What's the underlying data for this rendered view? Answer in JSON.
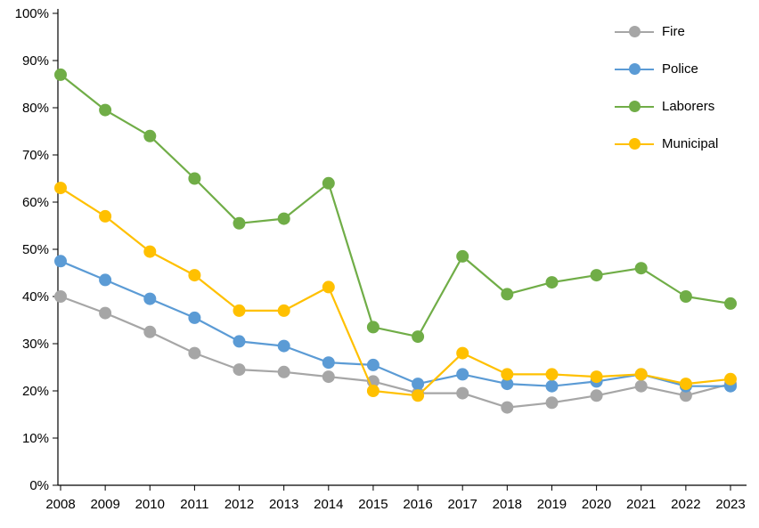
{
  "chart_data": {
    "type": "line",
    "title": "",
    "xlabel": "",
    "ylabel": "",
    "ylim": [
      0,
      100
    ],
    "y_tick_step": 10,
    "y_tick_suffix": "%",
    "grid": false,
    "legend_position": "top-right",
    "categories": [
      "2008",
      "2009",
      "2010",
      "2011",
      "2012",
      "2013",
      "2014",
      "2015",
      "2016",
      "2017",
      "2018",
      "2019",
      "2020",
      "2021",
      "2022",
      "2023"
    ],
    "series": [
      {
        "name": "Fire",
        "color": "#a6a6a6",
        "values": [
          40,
          36.5,
          32.5,
          28,
          24.5,
          24,
          23,
          22,
          19.5,
          19.5,
          16.5,
          17.5,
          19,
          21,
          19,
          21.5
        ]
      },
      {
        "name": "Police",
        "color": "#5b9bd5",
        "values": [
          47.5,
          43.5,
          39.5,
          35.5,
          30.5,
          29.5,
          26,
          25.5,
          21.5,
          23.5,
          21.5,
          21,
          22,
          23.5,
          21,
          21
        ]
      },
      {
        "name": "Laborers",
        "color": "#70ad47",
        "values": [
          87,
          79.5,
          74,
          65,
          55.5,
          56.5,
          64,
          33.5,
          31.5,
          48.5,
          40.5,
          43,
          44.5,
          46,
          40,
          38.5
        ]
      },
      {
        "name": "Municipal",
        "color": "#ffc000",
        "values": [
          63,
          57,
          49.5,
          44.5,
          37,
          37,
          42,
          20,
          19,
          28,
          23.5,
          23.5,
          23,
          23.5,
          21.5,
          22.5
        ]
      }
    ]
  }
}
